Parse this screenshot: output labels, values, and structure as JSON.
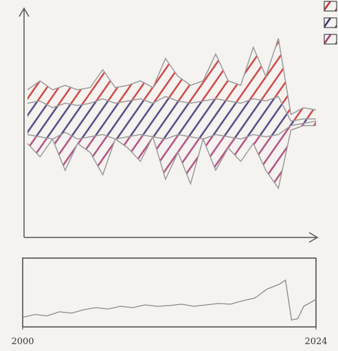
{
  "chart_data": [
    {
      "type": "band",
      "series": [
        {
          "color": "#9a9a9a",
          "values": [
            66,
            70,
            66,
            68,
            66,
            67,
            75,
            67,
            68,
            70,
            67,
            80,
            72,
            68,
            70,
            82,
            70,
            68,
            85,
            72,
            89,
            55,
            58,
            57
          ]
        },
        {
          "color": "#9a9a9a",
          "values": [
            60,
            61,
            58,
            60,
            59,
            60,
            62,
            60,
            61,
            62,
            60,
            63,
            61,
            60,
            61,
            62,
            61,
            60,
            62,
            61,
            63,
            52,
            53,
            53
          ]
        },
        {
          "color": "#9a9a9a",
          "values": [
            46,
            45,
            44,
            47,
            44,
            45,
            46,
            44,
            45,
            46,
            45,
            44,
            46,
            45,
            44,
            46,
            45,
            44,
            46,
            45,
            46,
            50,
            51,
            52
          ]
        },
        {
          "color": "#9a9a9a",
          "values": [
            42,
            36,
            44,
            30,
            42,
            38,
            28,
            44,
            40,
            34,
            45,
            26,
            38,
            24,
            44,
            30,
            40,
            34,
            42,
            30,
            22,
            48,
            50,
            50
          ]
        }
      ],
      "bands": [
        {
          "color": "#c62828"
        },
        {
          "color": "#3b2a6e"
        },
        {
          "color": "#a8326e"
        }
      ],
      "ylim": [
        0,
        100
      ]
    },
    {
      "type": "line",
      "x": [
        2000,
        2001,
        2002,
        2003,
        2004,
        2005,
        2006,
        2007,
        2008,
        2009,
        2010,
        2011,
        2012,
        2013,
        2014,
        2015,
        2016,
        2017,
        2018,
        2019,
        2020,
        2021,
        2021.5,
        2022,
        2022.5,
        2023,
        2024
      ],
      "values": [
        14,
        18,
        16,
        22,
        20,
        25,
        28,
        26,
        30,
        28,
        32,
        30,
        31,
        33,
        30,
        32,
        34,
        33,
        38,
        42,
        55,
        62,
        68,
        10,
        12,
        30,
        40
      ],
      "color": "#888888",
      "xlim": [
        2000,
        2024
      ],
      "xticks": [
        2000,
        2024
      ],
      "ylim": [
        0,
        100
      ]
    }
  ]
}
